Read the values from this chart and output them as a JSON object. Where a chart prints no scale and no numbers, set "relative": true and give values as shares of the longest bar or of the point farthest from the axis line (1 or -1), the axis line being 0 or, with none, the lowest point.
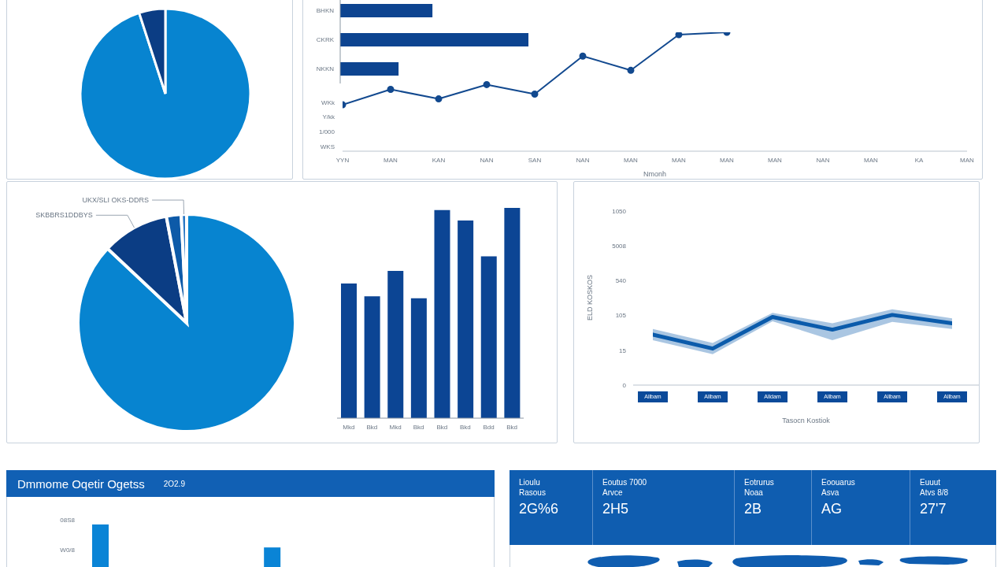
{
  "chart_data": [
    {
      "type": "pie",
      "categories": [
        null,
        null
      ],
      "values": [
        95,
        5
      ],
      "colors": [
        "#0784d0",
        "#0b3d84"
      ]
    },
    {
      "type": "bar",
      "orientation": "horizontal",
      "relative": true,
      "categories": [
        "BHKN",
        "CKRK",
        "NKKN"
      ],
      "values": [
        0.49,
        1,
        0.31
      ],
      "color": "#0d4490"
    },
    {
      "type": "line",
      "relative": true,
      "categories": [
        "YYN",
        "MAN",
        "KAN",
        "NAN",
        "SAN",
        "NAN",
        "MAN",
        "MAN",
        "MAN",
        "MAN",
        "NAN",
        "MAN",
        "KA",
        "MAN"
      ],
      "values": [
        0.39,
        0.52,
        0.44,
        0.56,
        0.48,
        0.8,
        0.68,
        0.98,
        1,
        null,
        null,
        null,
        null,
        null
      ],
      "color": "#12498f",
      "marker": "circle",
      "xlabel": "Nmonh",
      "annotations": [
        "WKk",
        "Y/kk",
        "1/000",
        "WKS"
      ]
    },
    {
      "type": "pie",
      "categories": [
        null,
        "SKBBRS1DDBYS",
        null,
        "UKX/SLI OKS-DDRS"
      ],
      "values": [
        87,
        10,
        2.2,
        0.8
      ],
      "colors": [
        "#0784d0",
        "#0b3d84",
        "#0d5aa8",
        "#2a78c4"
      ]
    },
    {
      "type": "bar",
      "relative": true,
      "categories": [
        "Mkd",
        "Bkd",
        "Mkd",
        "Bkd",
        "Bkd",
        "Bkd",
        "Bdd",
        "Bkd"
      ],
      "values": [
        0.64,
        0.58,
        0.7,
        0.57,
        0.99,
        0.94,
        0.77,
        1
      ],
      "color": "#0c4594"
    },
    {
      "type": "line",
      "relative": true,
      "categories": [
        "Allbam",
        "Allbam",
        "Alldam",
        "Allbam",
        "Allbam",
        "Allbam"
      ],
      "series": [
        {
          "color": "#0b5bab",
          "values": [
            0.72,
            0.52,
            0.97,
            0.79,
            1,
            0.88
          ],
          "lower": [
            0.64,
            0.44,
            0.91,
            0.64,
            0.9,
            0.8
          ],
          "upper": [
            0.8,
            0.6,
            1.03,
            0.88,
            1.08,
            0.95
          ]
        }
      ],
      "xlabel": "Tasocn Kostiok",
      "ylabel": "ELD KOSKOS",
      "annotations": [
        "1050",
        "5008",
        "540",
        "105",
        "15",
        "0"
      ]
    },
    {
      "type": "bar",
      "relative": true,
      "title": "Dmmome Oqetir Ogetss",
      "subtitle": "2O2.9",
      "categories": [
        null,
        null
      ],
      "values": [
        1,
        0.46
      ],
      "color": "#0a84d6",
      "annotations": [
        "08S8",
        "W0/8"
      ]
    },
    {
      "type": "other",
      "annotations": [
        "Lioulu",
        "Rasous",
        "2G%6",
        "Eoutus 7000",
        "Arvce",
        "2H5",
        "Eotrurus",
        "Noaa",
        "2B",
        "Eoouarus",
        "Asva",
        "AG",
        "Euuut",
        "Atvs 8/8",
        "27'7"
      ]
    }
  ]
}
